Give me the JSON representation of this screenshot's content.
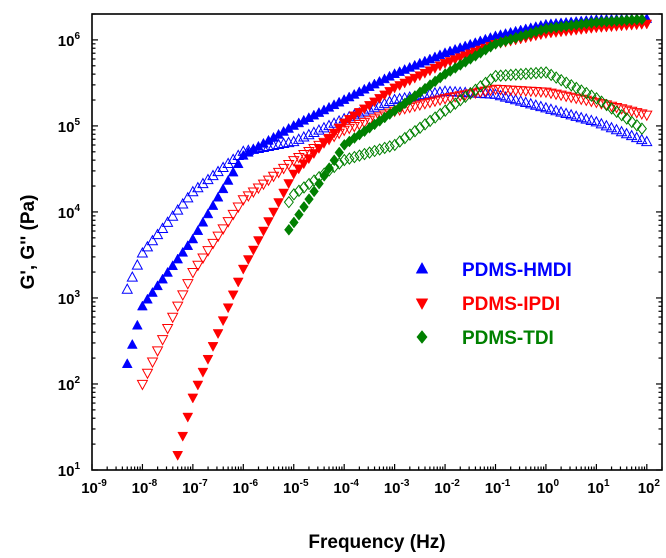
{
  "chart_data": {
    "type": "scatter",
    "xlabel": "Frequency (Hz)",
    "ylabel": "G', G'' (Pa)",
    "x_scale": "log",
    "y_scale": "log",
    "xlim": [
      1e-09,
      200
    ],
    "ylim": [
      10,
      2000000.0
    ],
    "x_ticks": [
      {
        "value": 1e-09,
        "base": "10",
        "exp": "-9"
      },
      {
        "value": 1e-08,
        "base": "10",
        "exp": "-8"
      },
      {
        "value": 1e-07,
        "base": "10",
        "exp": "-7"
      },
      {
        "value": 1e-06,
        "base": "10",
        "exp": "-6"
      },
      {
        "value": 1e-05,
        "base": "10",
        "exp": "-5"
      },
      {
        "value": 0.0001,
        "base": "10",
        "exp": "-4"
      },
      {
        "value": 0.001,
        "base": "10",
        "exp": "-3"
      },
      {
        "value": 0.01,
        "base": "10",
        "exp": "-2"
      },
      {
        "value": 0.1,
        "base": "10",
        "exp": "-1"
      },
      {
        "value": 1,
        "base": "10",
        "exp": "0"
      },
      {
        "value": 10,
        "base": "10",
        "exp": "1"
      },
      {
        "value": 100,
        "base": "10",
        "exp": "2"
      }
    ],
    "y_ticks": [
      {
        "value": 10,
        "base": "10",
        "exp": "1"
      },
      {
        "value": 100,
        "base": "10",
        "exp": "2"
      },
      {
        "value": 1000,
        "base": "10",
        "exp": "3"
      },
      {
        "value": 10000,
        "base": "10",
        "exp": "4"
      },
      {
        "value": 100000,
        "base": "10",
        "exp": "5"
      },
      {
        "value": 1000000,
        "base": "10",
        "exp": "6"
      }
    ],
    "grid": false,
    "legend_position": "right-middle",
    "series": [
      {
        "name": "PDMS-HMDI",
        "color": "#0000ff",
        "marker": "triangle-up",
        "modulus": "G'",
        "filled": true,
        "x_range": [
          5e-09,
          100
        ],
        "points": [
          [
            5e-09,
            170
          ],
          [
            1e-08,
            800
          ],
          [
            1e-07,
            4800
          ],
          [
            1e-06,
            45000
          ],
          [
            1e-05,
            100000
          ],
          [
            0.0001,
            200000
          ],
          [
            0.001,
            400000
          ],
          [
            0.01,
            700000
          ],
          [
            0.1,
            1100000
          ],
          [
            1,
            1500000
          ],
          [
            10,
            1700000
          ],
          [
            100,
            1750000
          ]
        ]
      },
      {
        "name": "PDMS-HMDI",
        "color": "#0000ff",
        "marker": "triangle-up",
        "modulus": "G''",
        "filled": false,
        "x_range": [
          5e-09,
          100
        ],
        "points": [
          [
            5e-09,
            1250
          ],
          [
            1e-08,
            3300
          ],
          [
            1e-07,
            17000
          ],
          [
            1e-06,
            50000
          ],
          [
            1e-05,
            65000
          ],
          [
            0.0001,
            120000
          ],
          [
            0.001,
            200000
          ],
          [
            0.01,
            250000
          ],
          [
            0.1,
            230000
          ],
          [
            1,
            160000
          ],
          [
            10,
            110000
          ],
          [
            100,
            65000
          ]
        ]
      },
      {
        "name": "PDMS-IPDI",
        "color": "#ff0000",
        "marker": "triangle-down",
        "modulus": "G'",
        "filled": true,
        "x_range": [
          5e-08,
          100
        ],
        "points": [
          [
            5e-08,
            15
          ],
          [
            1e-07,
            70
          ],
          [
            1e-06,
            2200
          ],
          [
            1e-05,
            28000
          ],
          [
            0.0001,
            110000
          ],
          [
            0.001,
            280000
          ],
          [
            0.01,
            540000
          ],
          [
            0.1,
            900000
          ],
          [
            1,
            1200000
          ],
          [
            10,
            1400000
          ],
          [
            100,
            1550000
          ]
        ]
      },
      {
        "name": "PDMS-IPDI",
        "color": "#ff0000",
        "marker": "triangle-down",
        "modulus": "G''",
        "filled": false,
        "x_range": [
          1e-08,
          100
        ],
        "points": [
          [
            1e-08,
            100
          ],
          [
            1e-07,
            2000
          ],
          [
            1e-06,
            14000
          ],
          [
            1e-05,
            40000
          ],
          [
            0.0001,
            90000
          ],
          [
            0.001,
            150000
          ],
          [
            0.01,
            210000
          ],
          [
            0.1,
            270000
          ],
          [
            1,
            250000
          ],
          [
            10,
            190000
          ],
          [
            100,
            135000
          ]
        ]
      },
      {
        "name": "PDMS-TDI",
        "color": "#008000",
        "marker": "diamond",
        "modulus": "G'",
        "filled": true,
        "x_range": [
          8e-06,
          100
        ],
        "points": [
          [
            8e-06,
            6200
          ],
          [
            1e-05,
            7500
          ],
          [
            0.0001,
            60000
          ],
          [
            0.001,
            150000
          ],
          [
            0.01,
            400000
          ],
          [
            0.1,
            900000
          ],
          [
            1,
            1350000
          ],
          [
            10,
            1600000
          ],
          [
            100,
            1750000
          ]
        ]
      },
      {
        "name": "PDMS-TDI",
        "color": "#008000",
        "marker": "diamond",
        "modulus": "G''",
        "filled": false,
        "x_range": [
          8e-06,
          100
        ],
        "points": [
          [
            8e-06,
            13000
          ],
          [
            1e-05,
            16000
          ],
          [
            0.0001,
            40000
          ],
          [
            0.001,
            60000
          ],
          [
            0.01,
            150000
          ],
          [
            0.1,
            380000
          ],
          [
            1,
            420000
          ],
          [
            10,
            210000
          ],
          [
            100,
            85000
          ]
        ]
      }
    ]
  }
}
